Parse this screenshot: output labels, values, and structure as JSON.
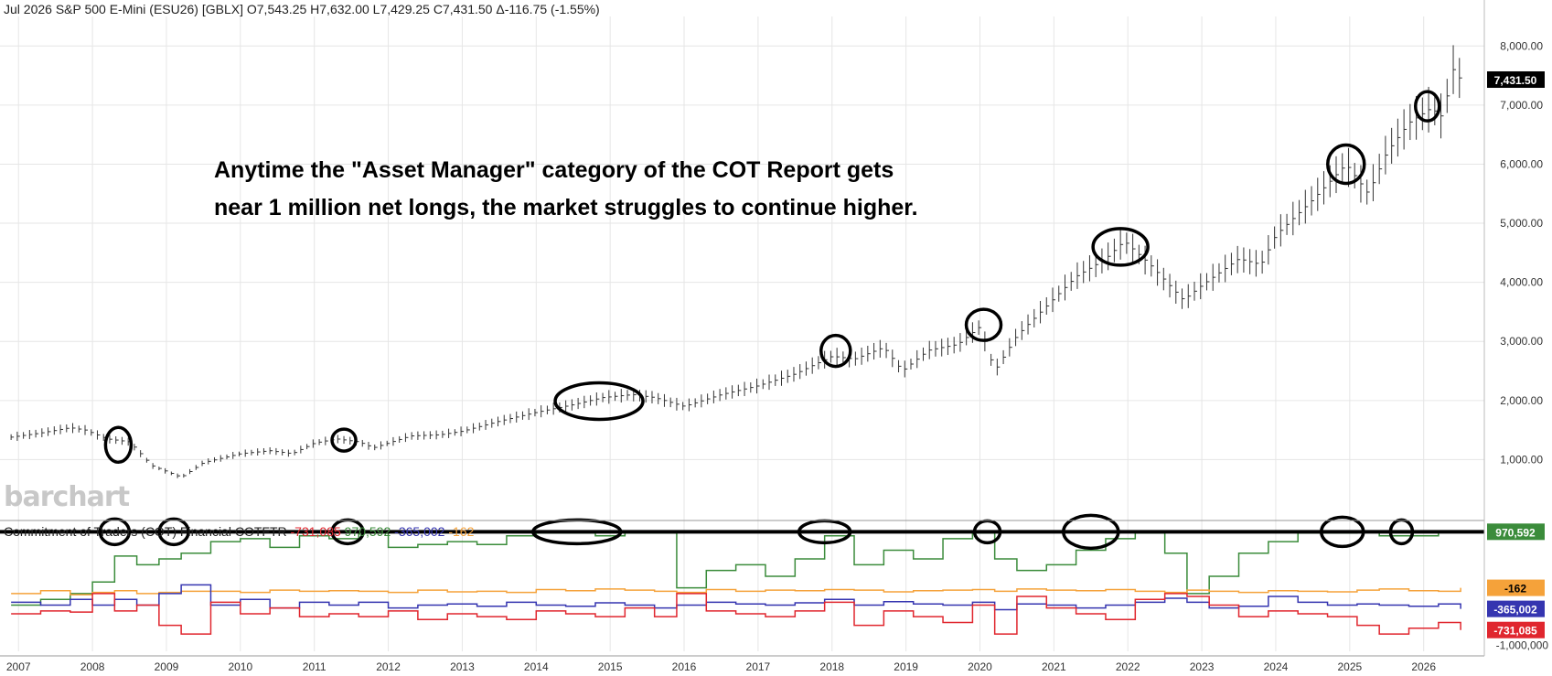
{
  "header": {
    "title": "Jul 2026 S&P 500 E-Mini (ESU26) [GBLX]",
    "open": "O7,543.25",
    "high": "H7,632.00",
    "low": "L7,429.25",
    "close": "C7,431.50",
    "change": "Δ-116.75 (-1.55%)"
  },
  "annotation": {
    "line1": "Anytime the \"Asset Manager\" category of the COT Report gets",
    "line2": "near 1 million net longs, the market struggles to continue higher."
  },
  "logo": "barchart",
  "cot": {
    "label": "Commitment of Traders (COT) Financial  COTFTR",
    "v_red": "-731,085",
    "v_green": "970,592",
    "v_blue": "-365,002",
    "v_orange": "-162"
  },
  "colors": {
    "green": "#3b8c3b",
    "red": "#e0262e",
    "blue": "#3535b0",
    "orange": "#f5a23a",
    "last_price_bg": "#000000"
  },
  "chart_data": [
    {
      "type": "line",
      "series": [
        {
          "values": [
            [
              2006.9,
              1380
            ],
            [
              2007.3,
              1450
            ],
            [
              2007.7,
              1540
            ],
            [
              2007.9,
              1500
            ],
            [
              2008.2,
              1350
            ],
            [
              2008.5,
              1300
            ],
            [
              2008.8,
              900
            ],
            [
              2009.0,
              800
            ],
            [
              2009.2,
              700
            ],
            [
              2009.5,
              950
            ],
            [
              2010.0,
              1100
            ],
            [
              2010.4,
              1150
            ],
            [
              2010.7,
              1100
            ],
            [
              2011.0,
              1280
            ],
            [
              2011.3,
              1350
            ],
            [
              2011.6,
              1300
            ],
            [
              2011.8,
              1200
            ],
            [
              2012.0,
              1280
            ],
            [
              2012.3,
              1400
            ],
            [
              2012.7,
              1420
            ],
            [
              2013.0,
              1480
            ],
            [
              2013.5,
              1650
            ],
            [
              2014.0,
              1800
            ],
            [
              2014.5,
              1930
            ],
            [
              2014.9,
              2050
            ],
            [
              2015.3,
              2100
            ],
            [
              2015.6,
              2050
            ],
            [
              2016.0,
              1900
            ],
            [
              2016.5,
              2100
            ],
            [
              2017.0,
              2250
            ],
            [
              2017.5,
              2450
            ],
            [
              2018.0,
              2750
            ],
            [
              2018.3,
              2700
            ],
            [
              2018.7,
              2900
            ],
            [
              2018.95,
              2500
            ],
            [
              2019.3,
              2850
            ],
            [
              2019.7,
              2950
            ],
            [
              2020.0,
              3250
            ],
            [
              2020.2,
              2500
            ],
            [
              2020.5,
              3100
            ],
            [
              2020.9,
              3600
            ],
            [
              2021.3,
              4100
            ],
            [
              2021.7,
              4400
            ],
            [
              2021.95,
              4700
            ],
            [
              2022.3,
              4300
            ],
            [
              2022.75,
              3700
            ],
            [
              2023.0,
              3950
            ],
            [
              2023.5,
              4400
            ],
            [
              2023.8,
              4300
            ],
            [
              2024.0,
              4800
            ],
            [
              2024.5,
              5400
            ],
            [
              2024.95,
              6000
            ],
            [
              2025.25,
              5500
            ],
            [
              2025.5,
              6200
            ],
            [
              2025.8,
              6700
            ],
            [
              2026.1,
              6950
            ],
            [
              2026.25,
              6800
            ],
            [
              2026.4,
              7600
            ],
            [
              2026.5,
              7431.5
            ]
          ]
        }
      ],
      "ylim": [
        0,
        8500
      ],
      "yticks": [
        "1,000.00",
        "2,000.00",
        "3,000.00",
        "4,000.00",
        "5,000.00",
        "6,000.00",
        "7,000.00",
        "8,000.00"
      ],
      "last_price_label": "7,431.50",
      "grid": true
    },
    {
      "type": "line",
      "x": [
        2006.9,
        2007.3,
        2007.7,
        2008.0,
        2008.3,
        2008.6,
        2008.9,
        2009.2,
        2009.6,
        2010.0,
        2010.4,
        2010.8,
        2011.2,
        2011.6,
        2012.0,
        2012.4,
        2012.8,
        2013.2,
        2013.6,
        2014.0,
        2014.4,
        2014.8,
        2015.2,
        2015.6,
        2015.9,
        2016.3,
        2016.7,
        2017.1,
        2017.5,
        2017.9,
        2018.3,
        2018.7,
        2019.1,
        2019.5,
        2019.9,
        2020.2,
        2020.5,
        2020.9,
        2021.3,
        2021.7,
        2022.1,
        2022.5,
        2022.8,
        2023.1,
        2023.5,
        2023.9,
        2024.3,
        2024.7,
        2025.1,
        2025.4,
        2025.8,
        2026.2,
        2026.5
      ],
      "series": [
        {
          "color": "green",
          "values": [
            -300000,
            -200000,
            -100000,
            100000,
            550000,
            400000,
            500000,
            600000,
            800000,
            850000,
            700000,
            900000,
            850000,
            950000,
            700000,
            750000,
            800000,
            750000,
            900000,
            950000,
            950000,
            900000,
            950000,
            950000,
            0,
            300000,
            400000,
            200000,
            500000,
            900000,
            400000,
            650000,
            500000,
            850000,
            950000,
            500000,
            300000,
            400000,
            650000,
            850000,
            950000,
            600000,
            -100000,
            200000,
            600000,
            800000,
            950000,
            950000,
            970000,
            900000,
            900000,
            960000,
            970592
          ]
        },
        {
          "color": "orange",
          "values": [
            -100000,
            -50000,
            -120000,
            -80000,
            -50000,
            -100000,
            -80000,
            -60000,
            -60000,
            -80000,
            -40000,
            -60000,
            -50000,
            -60000,
            -80000,
            -40000,
            -70000,
            -60000,
            -80000,
            -30000,
            -50000,
            -20000,
            -40000,
            -60000,
            -80000,
            -30000,
            -60000,
            -40000,
            -50000,
            -30000,
            -40000,
            -70000,
            -50000,
            -40000,
            -30000,
            -60000,
            -20000,
            -40000,
            -50000,
            -30000,
            -60000,
            -80000,
            -40000,
            -60000,
            -80000,
            -50000,
            -60000,
            -70000,
            -40000,
            -20000,
            -50000,
            -60000,
            -162
          ]
        },
        {
          "color": "blue",
          "values": [
            -250000,
            -300000,
            -200000,
            -300000,
            -200000,
            -300000,
            -100000,
            50000,
            -300000,
            -200000,
            -350000,
            -250000,
            -300000,
            -250000,
            -350000,
            -300000,
            -280000,
            -320000,
            -250000,
            -300000,
            -320000,
            -260000,
            -300000,
            -350000,
            -300000,
            -250000,
            -280000,
            -300000,
            -260000,
            -200000,
            -300000,
            -240000,
            -280000,
            -300000,
            -250000,
            -380000,
            -280000,
            -300000,
            -350000,
            -300000,
            -250000,
            -180000,
            -250000,
            -350000,
            -320000,
            -150000,
            -250000,
            -300000,
            -280000,
            -300000,
            -320000,
            -280000,
            -365002
          ]
        },
        {
          "color": "red",
          "values": [
            -450000,
            -400000,
            -420000,
            -100000,
            -400000,
            -300000,
            -650000,
            -800000,
            -250000,
            -450000,
            -350000,
            -500000,
            -450000,
            -500000,
            -400000,
            -550000,
            -450000,
            -500000,
            -550000,
            -400000,
            -450000,
            -500000,
            -350000,
            -500000,
            -100000,
            -400000,
            -450000,
            -500000,
            -400000,
            -250000,
            -650000,
            -400000,
            -500000,
            -600000,
            -300000,
            -800000,
            -150000,
            -350000,
            -450000,
            -550000,
            -200000,
            -100000,
            -150000,
            -300000,
            -500000,
            -400000,
            -450000,
            -500000,
            -650000,
            -800000,
            -700000,
            -600000,
            -731085
          ]
        }
      ],
      "ylim": [
        -1100000,
        1150000
      ],
      "yticks": [
        "-1,000,000"
      ],
      "last_value_labels": [
        "970,592",
        "-162",
        "-365,002",
        "-731,085"
      ]
    }
  ],
  "x_axis": {
    "labels": [
      "2007",
      "2008",
      "2009",
      "2010",
      "2011",
      "2012",
      "2013",
      "2014",
      "2015",
      "2016",
      "2017",
      "2018",
      "2019",
      "2020",
      "2021",
      "2022",
      "2023",
      "2024",
      "2025",
      "2026"
    ]
  }
}
